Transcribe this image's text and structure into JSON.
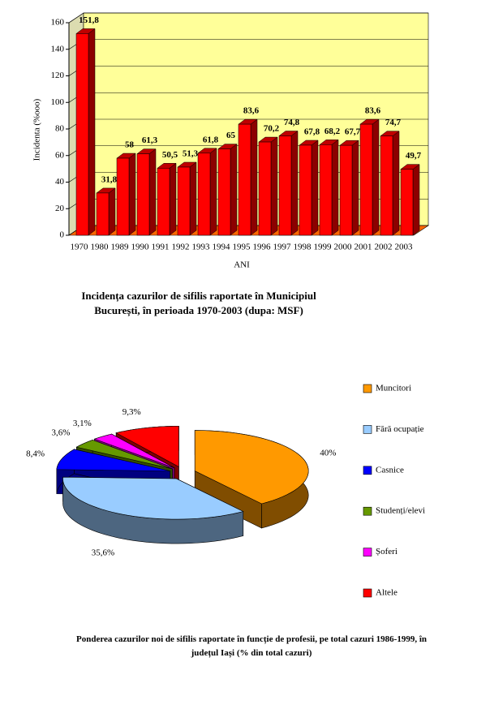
{
  "chart_data": [
    {
      "type": "bar3d",
      "title": "Incidența cazurilor de sifilis raportate în Municipiul București, în perioada 1970-2003  (dupa: MSF)",
      "ylabel": "Incidenta (%ooo)",
      "xlabel": "ANI",
      "categories": [
        "1970",
        "1980",
        "1989",
        "1990",
        "1991",
        "1992",
        "1993",
        "1994",
        "1995",
        "1996",
        "1997",
        "1998",
        "1999",
        "2000",
        "2001",
        "2002",
        "2003"
      ],
      "values": [
        151.8,
        31.8,
        58,
        61.3,
        50.5,
        51.3,
        61.8,
        65,
        83.6,
        70.2,
        74.8,
        67.8,
        68.2,
        67.7,
        83.6,
        74.7,
        49.7
      ],
      "value_labels": [
        "151,8",
        "31,8",
        "58",
        "61,3",
        "50,5",
        "51,3",
        "61,8",
        "65",
        "83,6",
        "70,2",
        "74,8",
        "67,8",
        "68,2",
        "67,7",
        "83,6",
        "74,7",
        "49,7"
      ],
      "color": "#ff0000",
      "ylim": [
        0,
        160
      ],
      "yticks": [
        0,
        20,
        40,
        60,
        80,
        100,
        120,
        140,
        160
      ],
      "grid": true
    },
    {
      "type": "pie3d",
      "title": "Ponderea cazurilor noi de sifilis raportate în funcție de profesii, pe total cazuri 1986-1999, în județul Iași (% din total cazuri)",
      "categories": [
        "Muncitori",
        "Fără ocupație",
        "Casnice",
        "Studenți/elevi",
        "Șoferi",
        "Altele"
      ],
      "values": [
        40,
        35.6,
        8.4,
        3.6,
        3.1,
        9.3
      ],
      "value_labels": [
        "40%",
        "35,6%",
        "8,4%",
        "3,6%",
        "3,1%",
        "9,3%"
      ],
      "colors": [
        "#ff9900",
        "#99ccff",
        "#0000ff",
        "#669900",
        "#ff00ff",
        "#ff0000"
      ],
      "legend": "right"
    }
  ]
}
